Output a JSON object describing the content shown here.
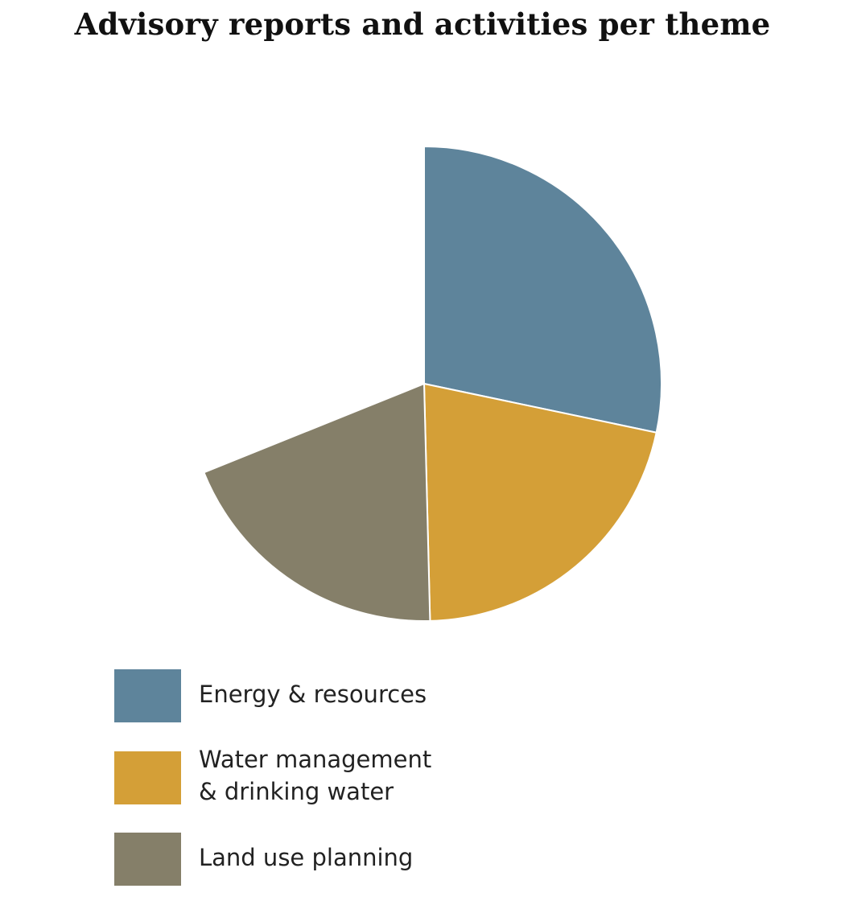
{
  "chart_data": {
    "type": "pie",
    "title": "Advisory reports and activities per theme",
    "slices": [
      {
        "label": "Energy & resources",
        "value": 28.3,
        "color": "#5e849b"
      },
      {
        "label": "Water management\n& drinking water",
        "value": 21.3,
        "color": "#d49f37"
      },
      {
        "label": "Land use planning",
        "value": 19.3,
        "color": "#857f69"
      }
    ],
    "start_angle_deg": 0,
    "direction": "clockwise",
    "legend_position": "bottom-left"
  }
}
